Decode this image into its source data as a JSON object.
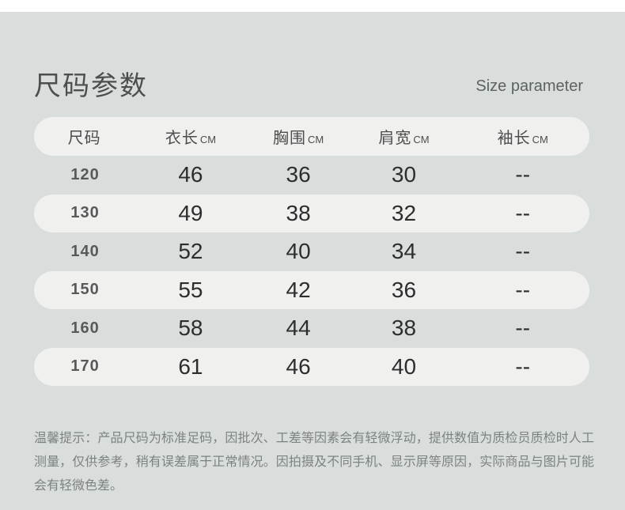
{
  "header": {
    "title": "尺码参数",
    "subtitle": "Size parameter"
  },
  "table": {
    "columns": [
      {
        "label": "尺码",
        "unit": ""
      },
      {
        "label": "衣长",
        "unit": "CM"
      },
      {
        "label": "胸围",
        "unit": "CM"
      },
      {
        "label": "肩宽",
        "unit": "CM"
      },
      {
        "label": "袖长",
        "unit": "CM"
      }
    ],
    "rows": [
      [
        "120",
        "46",
        "36",
        "30",
        "--"
      ],
      [
        "130",
        "49",
        "38",
        "32",
        "--"
      ],
      [
        "140",
        "52",
        "40",
        "34",
        "--"
      ],
      [
        "150",
        "55",
        "42",
        "36",
        "--"
      ],
      [
        "160",
        "58",
        "44",
        "38",
        "--"
      ],
      [
        "170",
        "61",
        "46",
        "40",
        "--"
      ]
    ]
  },
  "note": {
    "text": "温馨提示：产品尺码为标准足码，因批次、工差等因素会有轻微浮动，提供数值为质检员质检时人工测量，仅供参考，稍有误差属于正常情况。因拍摄及不同手机、显示屏等原因，实际商品与图片可能会有轻微色差。"
  },
  "colors": {
    "page_background": "#d9dedd",
    "row_pill": "#f0f1ef",
    "edge_strip": "#ffffff",
    "title_text": "#4e4e4e",
    "value_text": "#2d2d2d",
    "note_text": "#7d827f"
  }
}
